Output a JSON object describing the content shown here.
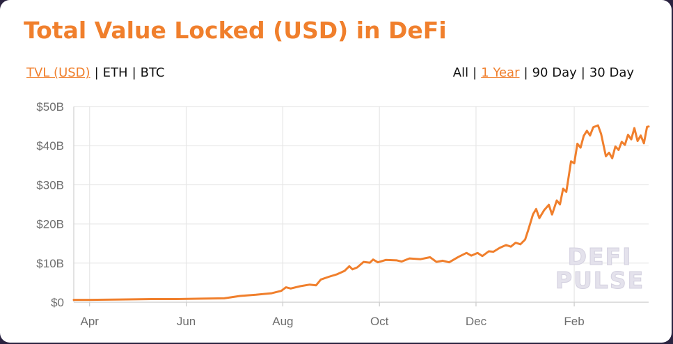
{
  "header": {
    "title": "Total Value Locked (USD) in DeFi"
  },
  "metric_tabs": [
    {
      "label": "TVL (USD)",
      "active": true
    },
    {
      "label": "ETH",
      "active": false
    },
    {
      "label": "BTC",
      "active": false
    }
  ],
  "range_tabs": [
    {
      "label": "All",
      "active": false
    },
    {
      "label": "1 Year",
      "active": true
    },
    {
      "label": "90 Day",
      "active": false
    },
    {
      "label": "30 Day",
      "active": false
    }
  ],
  "separator": "|",
  "watermark": {
    "line1": "DEFI",
    "line2": "PULSE"
  },
  "colors": {
    "accent": "#f07f2c",
    "grid": "#e6e6e6",
    "axis_text": "#6e6e6e"
  },
  "chart_data": {
    "type": "line",
    "title": "Total Value Locked (USD) in DeFi",
    "xlabel": "",
    "ylabel": "",
    "ylim": [
      0,
      50
    ],
    "y_ticks": [
      {
        "value": 0,
        "label": "$0"
      },
      {
        "value": 10,
        "label": "$10B"
      },
      {
        "value": 20,
        "label": "$20B"
      },
      {
        "value": 30,
        "label": "$30B"
      },
      {
        "value": 40,
        "label": "$40B"
      },
      {
        "value": 50,
        "label": "$50B"
      }
    ],
    "x_ticks": [
      {
        "date": "2020-04-01",
        "label": "Apr"
      },
      {
        "date": "2020-06-01",
        "label": "Jun"
      },
      {
        "date": "2020-08-01",
        "label": "Aug"
      },
      {
        "date": "2020-10-01",
        "label": "Oct"
      },
      {
        "date": "2020-12-01",
        "label": "Dec"
      },
      {
        "date": "2021-02-01",
        "label": "Feb"
      }
    ],
    "xlim": [
      "2020-03-22",
      "2021-03-20"
    ],
    "grid": true,
    "legend": "none",
    "series": [
      {
        "points": [
          [
            "2020-03-22",
            0.6
          ],
          [
            "2020-04-01",
            0.6
          ],
          [
            "2020-04-20",
            0.7
          ],
          [
            "2020-05-10",
            0.8
          ],
          [
            "2020-05-25",
            0.8
          ],
          [
            "2020-06-10",
            0.9
          ],
          [
            "2020-06-25",
            1.0
          ],
          [
            "2020-07-05",
            1.6
          ],
          [
            "2020-07-15",
            1.9
          ],
          [
            "2020-07-25",
            2.3
          ],
          [
            "2020-07-31",
            2.9
          ],
          [
            "2020-08-03",
            3.8
          ],
          [
            "2020-08-06",
            3.5
          ],
          [
            "2020-08-12",
            4.1
          ],
          [
            "2020-08-18",
            4.5
          ],
          [
            "2020-08-22",
            4.3
          ],
          [
            "2020-08-25",
            5.8
          ],
          [
            "2020-08-30",
            6.5
          ],
          [
            "2020-09-04",
            7.1
          ],
          [
            "2020-09-09",
            8.0
          ],
          [
            "2020-09-12",
            9.2
          ],
          [
            "2020-09-14",
            8.4
          ],
          [
            "2020-09-17",
            8.9
          ],
          [
            "2020-09-21",
            10.3
          ],
          [
            "2020-09-25",
            10.1
          ],
          [
            "2020-09-27",
            10.9
          ],
          [
            "2020-09-30",
            10.2
          ],
          [
            "2020-10-05",
            10.8
          ],
          [
            "2020-10-12",
            10.7
          ],
          [
            "2020-10-15",
            10.4
          ],
          [
            "2020-10-20",
            11.2
          ],
          [
            "2020-10-27",
            11.0
          ],
          [
            "2020-11-02",
            11.5
          ],
          [
            "2020-11-06",
            10.3
          ],
          [
            "2020-11-10",
            10.6
          ],
          [
            "2020-11-14",
            10.2
          ],
          [
            "2020-11-20",
            11.6
          ],
          [
            "2020-11-25",
            12.6
          ],
          [
            "2020-11-28",
            11.9
          ],
          [
            "2020-12-02",
            12.6
          ],
          [
            "2020-12-05",
            11.8
          ],
          [
            "2020-12-09",
            13.0
          ],
          [
            "2020-12-12",
            12.9
          ],
          [
            "2020-12-16",
            13.9
          ],
          [
            "2020-12-20",
            14.6
          ],
          [
            "2020-12-23",
            14.2
          ],
          [
            "2020-12-26",
            15.2
          ],
          [
            "2020-12-29",
            14.8
          ],
          [
            "2021-01-01",
            16.0
          ],
          [
            "2021-01-03",
            18.5
          ],
          [
            "2021-01-06",
            22.5
          ],
          [
            "2021-01-08",
            23.8
          ],
          [
            "2021-01-10",
            21.5
          ],
          [
            "2021-01-13",
            23.5
          ],
          [
            "2021-01-16",
            24.9
          ],
          [
            "2021-01-18",
            22.4
          ],
          [
            "2021-01-21",
            26.0
          ],
          [
            "2021-01-23",
            25.0
          ],
          [
            "2021-01-25",
            29.0
          ],
          [
            "2021-01-27",
            28.2
          ],
          [
            "2021-01-30",
            36.0
          ],
          [
            "2021-02-01",
            35.5
          ],
          [
            "2021-02-03",
            40.5
          ],
          [
            "2021-02-05",
            39.5
          ],
          [
            "2021-02-07",
            42.5
          ],
          [
            "2021-02-09",
            43.8
          ],
          [
            "2021-02-11",
            42.6
          ],
          [
            "2021-02-13",
            44.7
          ],
          [
            "2021-02-16",
            45.2
          ],
          [
            "2021-02-18",
            43.0
          ],
          [
            "2021-02-21",
            37.3
          ],
          [
            "2021-02-23",
            38.2
          ],
          [
            "2021-02-25",
            36.8
          ],
          [
            "2021-02-27",
            39.8
          ],
          [
            "2021-03-01",
            38.9
          ],
          [
            "2021-03-03",
            41.0
          ],
          [
            "2021-03-05",
            40.2
          ],
          [
            "2021-03-07",
            42.8
          ],
          [
            "2021-03-09",
            41.6
          ],
          [
            "2021-03-11",
            44.5
          ],
          [
            "2021-03-13",
            41.2
          ],
          [
            "2021-03-15",
            42.6
          ],
          [
            "2021-03-17",
            40.6
          ],
          [
            "2021-03-19",
            44.8
          ],
          [
            "2021-03-20",
            44.9
          ]
        ]
      }
    ]
  }
}
